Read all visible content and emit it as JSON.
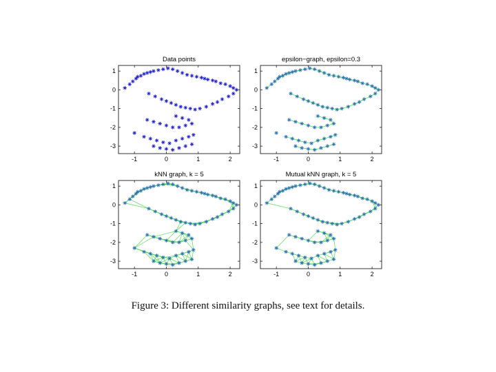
{
  "figure": {
    "caption": "Figure 3: Different similarity graphs, see text for details."
  },
  "chart_data": [
    {
      "type": "scatter",
      "title": "Data points",
      "xlim": [
        -1.5,
        2.3
      ],
      "ylim": [
        -3.4,
        1.3
      ],
      "xticks": [
        -1,
        0,
        1,
        2
      ],
      "yticks": [
        1,
        0,
        -1,
        -2,
        -3
      ],
      "marker": "asterisk",
      "marker_color": "#1c1cc8",
      "edges": "none",
      "x": [
        -1.3,
        -1.15,
        -1.05,
        -0.95,
        -0.9,
        -0.8,
        -0.7,
        -0.6,
        -0.5,
        -0.4,
        -0.25,
        -0.1,
        0.05,
        0.2,
        0.35,
        0.5,
        0.65,
        0.8,
        0.95,
        1.1,
        1.2,
        1.3,
        1.45,
        1.55,
        1.7,
        1.85,
        2.0,
        2.1,
        -0.55,
        -0.35,
        -0.15,
        0.0,
        0.15,
        0.3,
        0.45,
        0.6,
        0.75,
        0.9,
        1.05,
        1.25,
        1.45,
        1.6,
        1.75,
        1.95,
        2.1,
        2.2,
        -0.6,
        -0.4,
        -0.2,
        0.0,
        0.2,
        0.4,
        0.6,
        0.8,
        0.3,
        0.5,
        0.7,
        -1.0,
        -0.7,
        -0.5,
        -0.3,
        -0.1,
        0.1,
        0.3,
        0.5,
        0.7,
        0.85,
        -0.4,
        -0.2,
        0.0,
        0.2,
        0.4,
        0.6,
        0.8
      ],
      "y": [
        0.1,
        0.3,
        0.45,
        0.6,
        0.7,
        0.75,
        0.85,
        0.9,
        0.95,
        1.0,
        1.05,
        1.1,
        1.15,
        1.1,
        1.0,
        0.9,
        0.8,
        0.75,
        0.7,
        0.65,
        0.6,
        0.55,
        0.5,
        0.45,
        0.35,
        0.3,
        0.2,
        0.1,
        -0.2,
        -0.35,
        -0.5,
        -0.6,
        -0.7,
        -0.8,
        -0.9,
        -0.95,
        -1.0,
        -1.05,
        -1.0,
        -0.9,
        -0.75,
        -0.65,
        -0.5,
        -0.35,
        -0.2,
        0.0,
        -1.6,
        -1.7,
        -1.8,
        -1.9,
        -2.0,
        -2.0,
        -1.9,
        -1.8,
        -1.4,
        -1.5,
        -1.6,
        -2.3,
        -2.5,
        -2.6,
        -2.7,
        -2.8,
        -2.85,
        -2.7,
        -2.6,
        -2.5,
        -2.4,
        -3.0,
        -3.1,
        -3.15,
        -3.2,
        -3.1,
        -3.0,
        -2.9
      ]
    },
    {
      "type": "scatter",
      "title": "epsilon−graph, epsilon=0.3",
      "xlim": [
        -1.5,
        2.3
      ],
      "ylim": [
        -3.4,
        1.3
      ],
      "xticks": [
        -1,
        0,
        1,
        2
      ],
      "yticks": [
        1,
        0,
        -1,
        -2,
        -3
      ],
      "marker": "asterisk",
      "marker_color": "#2a6fb4",
      "edge_color": "#2ee82e",
      "edges": "epsilon",
      "epsilon": 0.3
    },
    {
      "type": "scatter",
      "title": "kNN graph, k = 5",
      "xlim": [
        -1.5,
        2.3
      ],
      "ylim": [
        -3.4,
        1.3
      ],
      "xticks": [
        -1,
        0,
        1,
        2
      ],
      "yticks": [
        1,
        0,
        -1,
        -2,
        -3
      ],
      "marker": "asterisk",
      "marker_color": "#2a6fb4",
      "edge_color": "#55dd55",
      "edges": "knn",
      "k": 5
    },
    {
      "type": "scatter",
      "title": "Mutual kNN graph, k = 5",
      "xlim": [
        -1.5,
        2.3
      ],
      "ylim": [
        -3.4,
        1.3
      ],
      "xticks": [
        -1,
        0,
        1,
        2
      ],
      "yticks": [
        1,
        0,
        -1,
        -2,
        -3
      ],
      "marker": "asterisk",
      "marker_color": "#2a6fb4",
      "edge_color": "#55dd55",
      "edges": "mutual-knn",
      "k": 5
    }
  ]
}
